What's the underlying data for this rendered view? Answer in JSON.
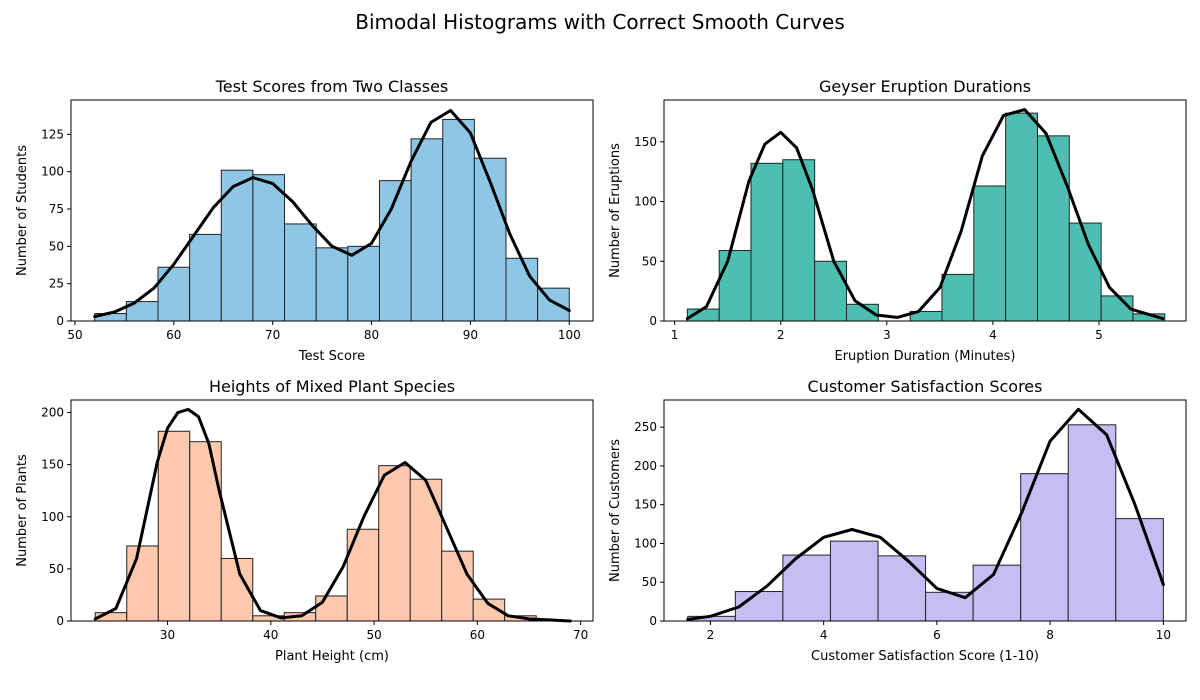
{
  "figure": {
    "title": "Bimodal Histograms with Correct Smooth Curves"
  },
  "chart_data": [
    {
      "type": "bar",
      "title": "Test Scores from Two Classes",
      "xlabel": "Test Score",
      "ylabel": "Number of Students",
      "xlim": [
        49.6,
        102.4
      ],
      "ylim": [
        0,
        148
      ],
      "xticks": [
        50,
        60,
        70,
        80,
        90,
        100
      ],
      "yticks": [
        0,
        25,
        50,
        75,
        100,
        125
      ],
      "bin_edges": [
        52,
        55.2,
        58.4,
        61.6,
        64.8,
        68,
        71.2,
        74.4,
        77.6,
        80.8,
        84,
        87.2,
        90.4,
        93.6,
        96.8,
        100
      ],
      "values": [
        5,
        13,
        36,
        58,
        101,
        98,
        65,
        49,
        50,
        94,
        122,
        135,
        109,
        42,
        22
      ],
      "bar_color": "#8ec7e6",
      "curve": {
        "x": [
          52,
          54,
          56,
          58,
          60,
          62,
          64,
          66,
          68,
          70,
          72,
          74,
          76,
          78,
          80,
          82,
          84,
          86,
          88,
          90,
          92,
          94,
          96,
          98,
          100
        ],
        "y": [
          3,
          6,
          12,
          22,
          38,
          57,
          76,
          90,
          96,
          92,
          80,
          64,
          50,
          44,
          52,
          75,
          107,
          133,
          141,
          126,
          93,
          58,
          30,
          14,
          7
        ]
      }
    },
    {
      "type": "bar",
      "title": "Geyser Eruption Durations",
      "xlabel": "Eruption Duration (Minutes)",
      "ylabel": "Number of Eruptions",
      "xlim": [
        0.9,
        5.82
      ],
      "ylim": [
        0,
        185
      ],
      "xticks": [
        1,
        2,
        3,
        4,
        5
      ],
      "yticks": [
        0,
        50,
        100,
        150
      ],
      "bin_edges": [
        1.12,
        1.42,
        1.72,
        2.02,
        2.32,
        2.62,
        2.92,
        3.22,
        3.52,
        3.82,
        4.12,
        4.42,
        4.72,
        5.02,
        5.32,
        5.62
      ],
      "values": [
        10,
        59,
        132,
        135,
        50,
        14,
        0,
        8,
        39,
        113,
        174,
        155,
        82,
        21,
        6
      ],
      "bar_color": "#4dbfb0",
      "curve": {
        "x": [
          1.12,
          1.3,
          1.5,
          1.7,
          1.85,
          2.0,
          2.15,
          2.3,
          2.5,
          2.7,
          2.9,
          3.1,
          3.3,
          3.5,
          3.7,
          3.9,
          4.1,
          4.3,
          4.5,
          4.7,
          4.9,
          5.1,
          5.3,
          5.6
        ],
        "y": [
          2,
          12,
          50,
          117,
          148,
          158,
          145,
          110,
          50,
          17,
          5,
          3,
          8,
          28,
          75,
          138,
          172,
          177,
          157,
          113,
          64,
          28,
          10,
          2
        ]
      }
    },
    {
      "type": "bar",
      "title": "Heights of Mixed Plant Species",
      "xlabel": "Plant Height (cm)",
      "ylabel": "Number of Plants",
      "xlim": [
        20.65,
        71.2
      ],
      "ylim": [
        0,
        212
      ],
      "xticks": [
        30,
        40,
        50,
        60,
        70
      ],
      "yticks": [
        0,
        50,
        100,
        150,
        200
      ],
      "bin_edges": [
        23,
        26.05,
        29.1,
        32.15,
        35.2,
        38.25,
        41.3,
        44.35,
        47.4,
        50.45,
        53.5,
        56.55,
        59.6,
        62.65,
        65.7
      ],
      "values": [
        8,
        72,
        182,
        172,
        60,
        5,
        8,
        24,
        88,
        149,
        136,
        67,
        21,
        5
      ],
      "bar_color": "#ffc9ad",
      "curve": {
        "x": [
          23,
          25,
          27,
          29,
          30,
          31,
          32,
          33,
          34,
          35,
          37,
          39,
          41,
          43,
          45,
          47,
          49,
          51,
          53,
          55,
          57,
          59,
          61,
          63,
          65,
          69
        ],
        "y": [
          2,
          12,
          60,
          152,
          185,
          200,
          203,
          196,
          170,
          125,
          45,
          10,
          3,
          5,
          18,
          52,
          100,
          140,
          152,
          135,
          90,
          45,
          17,
          5,
          2,
          0
        ]
      }
    },
    {
      "type": "bar",
      "title": "Customer Satisfaction Scores",
      "xlabel": "Customer Satisfaction Score (1-10)",
      "ylabel": "Number of Customers",
      "xlim": [
        1.18,
        10.4
      ],
      "ylim": [
        0,
        285
      ],
      "xticks": [
        2,
        4,
        6,
        8,
        10
      ],
      "yticks": [
        0,
        50,
        100,
        150,
        200,
        250
      ],
      "bin_edges": [
        1.6,
        2.44,
        3.28,
        4.12,
        4.96,
        5.8,
        6.64,
        7.48,
        8.32,
        9.16,
        10
      ],
      "values": [
        6,
        38,
        85,
        103,
        84,
        37,
        72,
        190,
        253,
        132
      ],
      "bar_color": "#c8bcf5",
      "curve": {
        "x": [
          1.6,
          2.0,
          2.5,
          3.0,
          3.5,
          4.0,
          4.5,
          5.0,
          5.5,
          6.0,
          6.5,
          7.0,
          7.5,
          8.0,
          8.5,
          9.0,
          9.5,
          10.0
        ],
        "y": [
          2,
          6,
          18,
          45,
          80,
          108,
          118,
          108,
          77,
          42,
          30,
          60,
          140,
          232,
          273,
          240,
          150,
          47
        ]
      }
    }
  ]
}
